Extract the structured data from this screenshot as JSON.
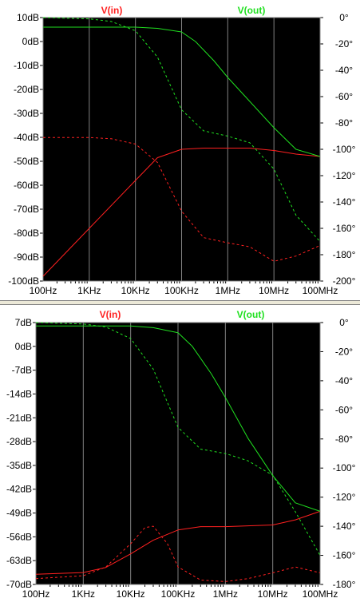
{
  "chart_data": [
    {
      "type": "line",
      "xscale": "log",
      "xlim": [
        100,
        100000000
      ],
      "ylim": [
        -100,
        10
      ],
      "y2lim": [
        -200,
        0
      ],
      "x_ticks": [
        "100Hz",
        "1KHz",
        "10KHz",
        "100KHz",
        "1MHz",
        "10MHz",
        "100MHz"
      ],
      "y_ticks": [
        "10dB",
        "0dB",
        "-10dB",
        "-20dB",
        "-30dB",
        "-40dB",
        "-50dB",
        "-60dB",
        "-70dB",
        "-80dB",
        "-90dB",
        "-100dB"
      ],
      "y2_ticks": [
        "0°",
        "-20°",
        "-40°",
        "-60°",
        "-80°",
        "-100°",
        "-120°",
        "-140°",
        "-160°",
        "-180°",
        "-200°"
      ],
      "legend": [
        "V(in)",
        "V(out)"
      ],
      "colors": {
        "V(in)": "#ff2020",
        "V(out)": "#20e020",
        "background": "#000000",
        "axes": "#808080"
      },
      "series": [
        {
          "name": "V(in)",
          "axis": "magnitude_dB",
          "style": "solid",
          "x": [
            100,
            1000,
            10000,
            30000,
            100000,
            300000,
            1000000,
            3000000,
            10000000,
            30000000,
            100000000
          ],
          "y": [
            -98,
            -78,
            -58,
            -48.5,
            -45,
            -44.5,
            -44.5,
            -44.5,
            -45.5,
            -47,
            -48
          ]
        },
        {
          "name": "V(in)",
          "axis": "phase_deg",
          "style": "dashed",
          "x": [
            100,
            1000,
            3000,
            10000,
            30000,
            100000,
            300000,
            1000000,
            3000000,
            10000000,
            30000000,
            100000000
          ],
          "y": [
            -91,
            -91,
            -92,
            -96,
            -110,
            -147,
            -167,
            -171,
            -174,
            -185,
            -181,
            -173
          ]
        },
        {
          "name": "V(out)",
          "axis": "magnitude_dB",
          "style": "solid",
          "x": [
            100,
            1000,
            10000,
            30000,
            100000,
            200000,
            500000,
            1000000,
            3000000,
            10000000,
            30000000,
            100000000
          ],
          "y": [
            6,
            6,
            6,
            5.5,
            4,
            0,
            -8,
            -15,
            -25,
            -36,
            -45,
            -48
          ]
        },
        {
          "name": "V(out)",
          "axis": "phase_deg",
          "style": "dashed",
          "x": [
            100,
            1000,
            3000,
            10000,
            30000,
            100000,
            300000,
            1000000,
            3000000,
            10000000,
            30000000,
            100000000
          ],
          "y": [
            0,
            -1,
            -3,
            -10,
            -30,
            -70,
            -86,
            -90,
            -95,
            -115,
            -150,
            -170
          ]
        }
      ]
    },
    {
      "type": "line",
      "xscale": "log",
      "xlim": [
        100,
        100000000
      ],
      "ylim": [
        -70,
        7
      ],
      "y2lim": [
        -180,
        0
      ],
      "x_ticks": [
        "100Hz",
        "1KHz",
        "10KHz",
        "100KHz",
        "1MHz",
        "10MHz",
        "100MHz"
      ],
      "y_ticks": [
        "7dB",
        "0dB",
        "-7dB",
        "-14dB",
        "-21dB",
        "-28dB",
        "-35dB",
        "-42dB",
        "-49dB",
        "-56dB",
        "-63dB",
        "-70dB"
      ],
      "y2_ticks": [
        "0°",
        "-20°",
        "-40°",
        "-60°",
        "-80°",
        "-100°",
        "-120°",
        "-140°",
        "-160°",
        "-180°"
      ],
      "legend": [
        "V(in)",
        "V(out)"
      ],
      "colors": {
        "V(in)": "#ff2020",
        "V(out)": "#20e020",
        "background": "#000000",
        "axes": "#808080"
      },
      "series": [
        {
          "name": "V(in)",
          "axis": "magnitude_dB",
          "style": "solid",
          "x": [
            100,
            1000,
            3000,
            10000,
            30000,
            100000,
            300000,
            1000000,
            10000000,
            30000000,
            100000000
          ],
          "y": [
            -67,
            -66.5,
            -65,
            -61,
            -57,
            -54,
            -53,
            -53,
            -52.5,
            -51,
            -48.5
          ]
        },
        {
          "name": "V(in)",
          "axis": "phase_deg",
          "style": "dashed",
          "x": [
            100,
            1000,
            3000,
            10000,
            20000,
            30000,
            60000,
            100000,
            300000,
            1000000,
            3000000,
            10000000,
            30000000,
            100000000
          ],
          "y": [
            -176,
            -174,
            -168,
            -152,
            -141,
            -140,
            -152,
            -168,
            -177,
            -178,
            -176,
            -172,
            -168,
            -172
          ]
        },
        {
          "name": "V(out)",
          "axis": "magnitude_dB",
          "style": "solid",
          "x": [
            100,
            1000,
            10000,
            30000,
            100000,
            200000,
            500000,
            1000000,
            3000000,
            10000000,
            30000000,
            100000000
          ],
          "y": [
            6,
            6,
            6,
            5.5,
            4,
            0,
            -8,
            -15,
            -27,
            -38,
            -46,
            -48.5
          ]
        },
        {
          "name": "V(out)",
          "axis": "phase_deg",
          "style": "dashed",
          "x": [
            100,
            1000,
            3000,
            10000,
            30000,
            100000,
            300000,
            1000000,
            3000000,
            10000000,
            30000000,
            100000000
          ],
          "y": [
            0,
            -1,
            -3,
            -11,
            -32,
            -72,
            -87,
            -90,
            -95,
            -105,
            -130,
            -160
          ]
        }
      ]
    }
  ]
}
